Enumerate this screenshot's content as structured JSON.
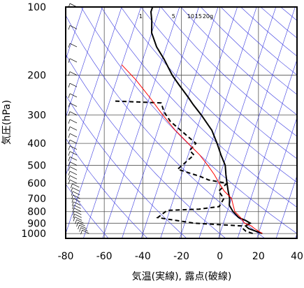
{
  "chart_data": {
    "type": "line",
    "title": "",
    "xlabel": "気温(実線), 露点(破線)",
    "ylabel": "気圧(hPa)",
    "x_range": [
      -80,
      40
    ],
    "y_range": [
      1050,
      100
    ],
    "y_scale": "log",
    "grid": true,
    "x_ticks": [
      -80,
      -60,
      -40,
      -20,
      0,
      20,
      40
    ],
    "y_ticks": [
      100,
      200,
      300,
      400,
      500,
      600,
      700,
      800,
      900,
      1000
    ],
    "mixing_ratio_labels": [
      {
        "text": "1",
        "x": -42
      },
      {
        "text": "5",
        "x": -25
      },
      {
        "text": "10",
        "x": -17
      },
      {
        "text": "15",
        "x": -13
      },
      {
        "text": "20g",
        "x": -9
      }
    ],
    "series": [
      {
        "style": "solid",
        "color": "#000000",
        "points": [
          [
            22,
            1000
          ],
          [
            18,
            975
          ],
          [
            14,
            950
          ],
          [
            12,
            925
          ],
          [
            14,
            900
          ],
          [
            11,
            875
          ],
          [
            7,
            850
          ],
          [
            3,
            800
          ],
          [
            0,
            750
          ],
          [
            -1,
            700
          ],
          [
            -3,
            650
          ],
          [
            -5,
            600
          ],
          [
            -7,
            550
          ],
          [
            -9,
            500
          ],
          [
            -13,
            450
          ],
          [
            -17,
            400
          ],
          [
            -22,
            350
          ],
          [
            -30,
            300
          ],
          [
            -36,
            270
          ],
          [
            -40,
            250
          ],
          [
            -47,
            220
          ],
          [
            -52,
            200
          ],
          [
            -59,
            170
          ],
          [
            -65,
            150
          ],
          [
            -70,
            130
          ],
          [
            -72,
            115
          ],
          [
            -74,
            105
          ],
          [
            -74,
            100
          ]
        ]
      },
      {
        "style": "dashed",
        "color": "#000000",
        "points": [
          [
            17,
            1000
          ],
          [
            13,
            975
          ],
          [
            11,
            950
          ],
          [
            10,
            925
          ],
          [
            -15,
            900
          ],
          [
            -35,
            850
          ],
          [
            -32,
            800
          ],
          [
            -31,
            790
          ],
          [
            -15,
            780
          ],
          [
            -5,
            760
          ],
          [
            -4,
            700
          ],
          [
            -8,
            650
          ],
          [
            -5,
            600
          ],
          [
            -15,
            580
          ],
          [
            -20,
            560
          ],
          [
            -33,
            520
          ],
          [
            -27,
            450
          ],
          [
            -30,
            430
          ],
          [
            -28,
            400
          ],
          [
            -45,
            320
          ],
          [
            -50,
            290
          ],
          [
            -53,
            265
          ],
          [
            -68,
            262
          ],
          [
            -78,
            260
          ]
        ]
      },
      {
        "style": "solid",
        "color": "#ff0000",
        "points": [
          [
            22,
            1000
          ],
          [
            17,
            950
          ],
          [
            15,
            925
          ],
          [
            11,
            900
          ],
          [
            8,
            850
          ],
          [
            4,
            800
          ],
          [
            2,
            750
          ],
          [
            0,
            700
          ],
          [
            -5,
            650
          ],
          [
            -9,
            600
          ],
          [
            -13,
            550
          ],
          [
            -18,
            500
          ],
          [
            -24,
            450
          ],
          [
            -32,
            400
          ],
          [
            -41,
            350
          ],
          [
            -50,
            300
          ],
          [
            -60,
            250
          ],
          [
            -70,
            210
          ],
          [
            -80,
            180
          ]
        ]
      }
    ],
    "wind_barbs_pressures": [
      1000,
      975,
      950,
      925,
      900,
      875,
      850,
      825,
      800,
      775,
      750,
      725,
      700,
      675,
      650,
      625,
      600,
      575,
      550,
      525,
      500,
      475,
      450,
      425,
      400,
      375,
      350,
      325,
      300,
      275,
      250,
      225,
      200,
      175,
      150,
      125,
      100
    ]
  }
}
